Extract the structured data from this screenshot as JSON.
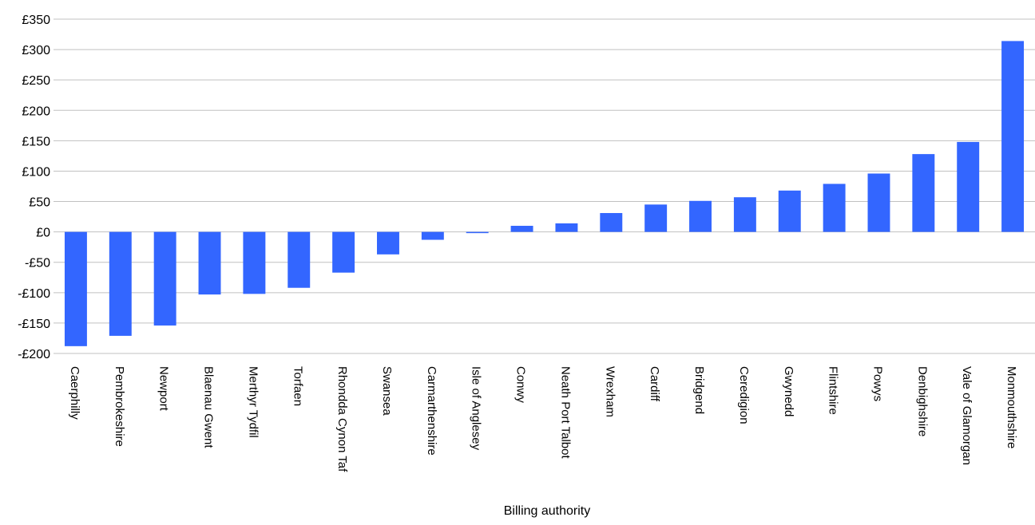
{
  "chart_data": {
    "type": "bar",
    "title": "",
    "xlabel": "Billing authority",
    "ylabel": "",
    "ylim": [
      -200,
      350
    ],
    "ytick_values": [
      -200,
      -150,
      -100,
      -50,
      0,
      50,
      100,
      150,
      200,
      250,
      300,
      350
    ],
    "ytick_labels": [
      "-£200",
      "-£150",
      "-£100",
      "-£50",
      "£0",
      "£50",
      "£100",
      "£150",
      "£200",
      "£250",
      "£300",
      "£350"
    ],
    "grid": true,
    "bar_color": "#3366ff",
    "categories": [
      "Caerphilly",
      "Pembrokeshire",
      "Newport",
      "Blaenau Gwent",
      "Merthyr Tydfil",
      "Torfaen",
      "Rhondda Cynon Taf",
      "Swansea",
      "Carmarthenshire",
      "Isle of Anglesey",
      "Conwy",
      "Neath Port Talbot",
      "Wrexham",
      "Cardiff",
      "Bridgend",
      "Ceredigion",
      "Gwynedd",
      "Flintshire",
      "Powys",
      "Denbighshire",
      "Vale of Glamorgan",
      "Monmouthshire"
    ],
    "values": [
      -188,
      -171,
      -154,
      -103,
      -102,
      -92,
      -67,
      -37,
      -13,
      -2,
      10,
      14,
      31,
      45,
      51,
      57,
      68,
      79,
      96,
      128,
      148,
      314
    ]
  }
}
